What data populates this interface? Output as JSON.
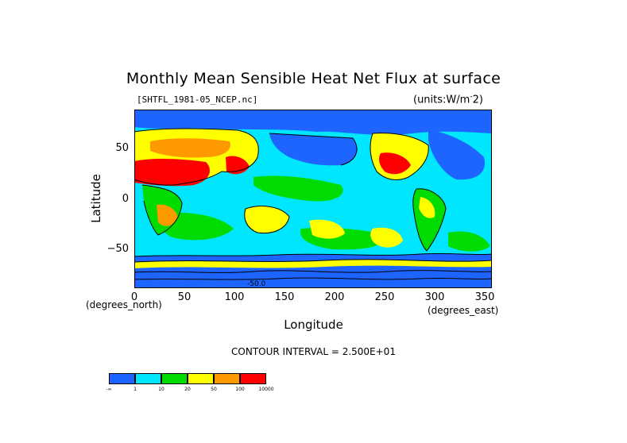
{
  "title": "Monthly Mean Sensible Heat Net Flux at surface",
  "file_label": "[SHTFL_1981-05_NCEP.nc]",
  "units_label": "(units:W/m^-2)",
  "units_prefix": "(units:W/m",
  "units_sup": "-",
  "units_suffix": "2)",
  "xlabel": "Longitude",
  "ylabel": "Latitude",
  "x_unit": "(degrees_east)",
  "y_unit": "(degrees_north)",
  "x_ticks": [
    "0",
    "50",
    "100",
    "150",
    "200",
    "250",
    "300",
    "350"
  ],
  "y_ticks": [
    "50",
    "0",
    "−50"
  ],
  "contour_text": "CONTOUR INTERVAL = 2.500E+01",
  "contour_annotation": "-50.0",
  "legend": {
    "colors": [
      "#1e64ff",
      "#00e6ff",
      "#00dc00",
      "#ffff00",
      "#ff9900",
      "#ff0000"
    ],
    "ticks": [
      "-∞",
      "1",
      "10",
      "20",
      "50",
      "100",
      "10000"
    ]
  },
  "map_colors": {
    "ocean_low": "#1e64ff",
    "ocean_mid": "#00e6ff",
    "green": "#00dc00",
    "yellow": "#ffff00",
    "orange": "#ff9900",
    "red": "#ff0000",
    "contour": "#000000"
  },
  "chart_data": {
    "type": "heatmap",
    "title": "Monthly Mean Sensible Heat Net Flux at surface",
    "xlabel": "Longitude",
    "ylabel": "Latitude",
    "xlim": [
      0,
      357.5
    ],
    "ylim": [
      -90,
      90
    ],
    "x_ticks": [
      0,
      50,
      100,
      150,
      200,
      250,
      300,
      350
    ],
    "y_ticks": [
      50,
      0,
      -50
    ],
    "units": "W/m^-2",
    "contour_interval": 25,
    "color_levels": [
      -1000000000.0,
      1,
      10,
      20,
      50,
      100,
      10000
    ]
  }
}
